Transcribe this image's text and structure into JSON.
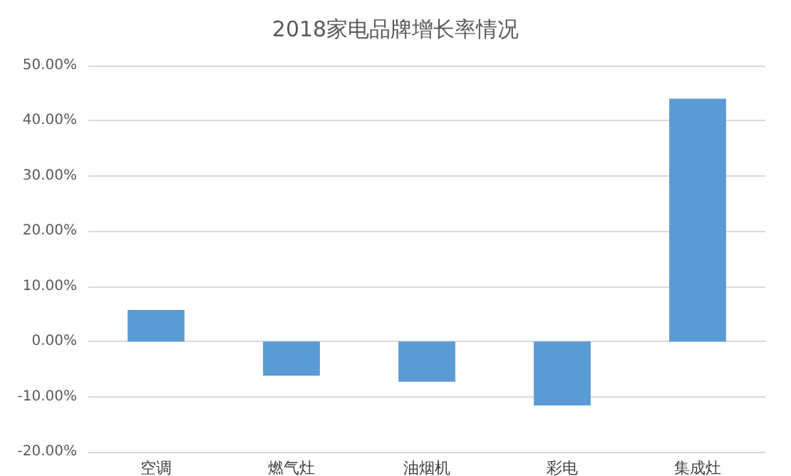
{
  "chart_data": {
    "type": "bar",
    "title": "2018家电品牌增长率情况",
    "categories": [
      "空调",
      "燃气灶",
      "油烟机",
      "彩电",
      "集成灶"
    ],
    "values": [
      5.7,
      -6.2,
      -7.3,
      -11.6,
      44
    ],
    "color": "#5b9bd5",
    "ylim": [
      -20,
      50
    ],
    "yticks": [
      {
        "value": -20,
        "label": "-20.00%"
      },
      {
        "value": -10,
        "label": "-10.00%"
      },
      {
        "value": 0,
        "label": "0.00%"
      },
      {
        "value": 10,
        "label": "10.00%"
      },
      {
        "value": 20,
        "label": "20.00%"
      },
      {
        "value": 30,
        "label": "30.00%"
      },
      {
        "value": 40,
        "label": "40.00%"
      },
      {
        "value": 50,
        "label": "50.00%"
      }
    ],
    "grid": true
  }
}
